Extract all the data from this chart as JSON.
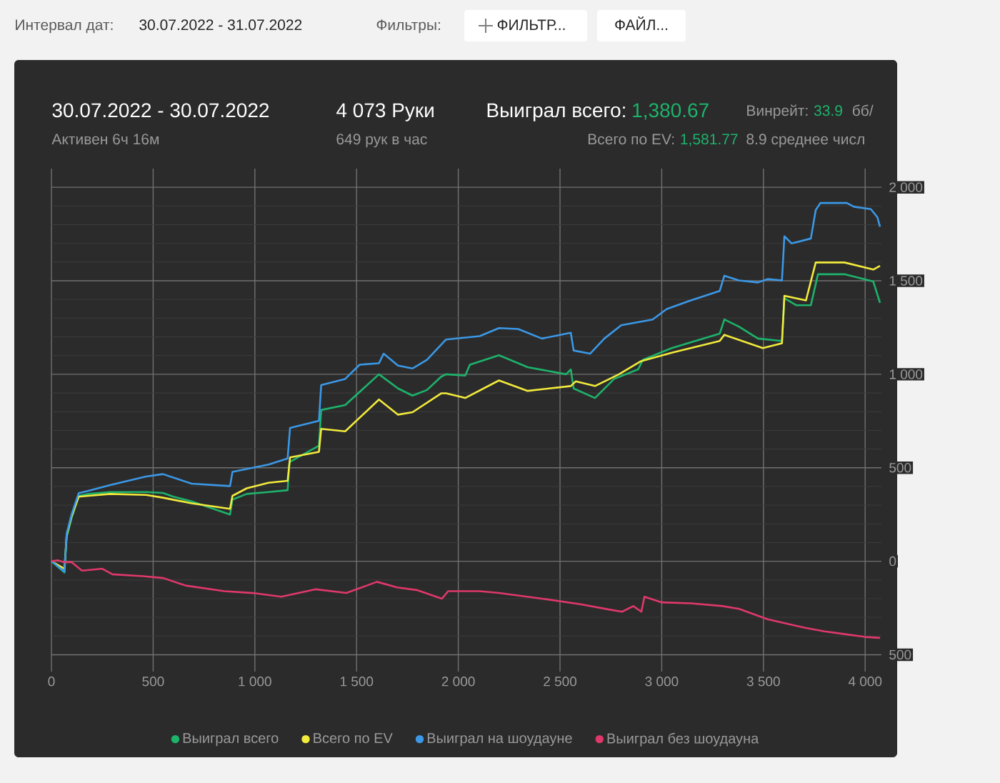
{
  "chart_data": {
    "type": "line",
    "title": "30.07.2022 - 30.07.2022",
    "subtitle": "Активен 6ч 16м",
    "annotations": [
      "Интервал дат:",
      "30.07.2022 - 31.07.2022",
      "Фильтры:",
      "ФИЛЬТР...",
      "ФАЙЛ...",
      "4 073 Руки",
      "649 рук в час",
      "Выиграл всего:",
      "1,380.67",
      "Всего по EV:",
      "1,581.77",
      "Винрейт:",
      "33.9",
      "бб/",
      "8.9 среднее числ"
    ],
    "xlim": [
      0,
      4080
    ],
    "ylim": [
      -590,
      2100
    ],
    "xticks": [
      0,
      500,
      {
        "value": 1000,
        "label": "1 000"
      },
      {
        "value": 1500,
        "label": "1 500"
      },
      {
        "value": 2000,
        "label": "2 000"
      },
      {
        "value": 2500,
        "label": "2 500"
      },
      {
        "value": 3000,
        "label": "3 000"
      },
      {
        "value": 3500,
        "label": "3 500"
      },
      {
        "value": 4000,
        "label": "4 000"
      }
    ],
    "yticks": [
      {
        "value": -500,
        "label": "500"
      },
      0,
      500,
      {
        "value": 1000,
        "label": "1 000"
      },
      {
        "value": 1500,
        "label": "1 500"
      },
      {
        "value": 2000,
        "label": "2 000"
      }
    ],
    "grid": true,
    "legend": "bottom",
    "line_style": "solid",
    "series": [
      {
        "name": "Выиграл всего",
        "color": "#1db36b",
        "x": [
          0,
          64,
          75,
          99,
          134,
          182,
          288,
          465,
          548,
          600,
          689,
          878,
          890,
          960,
          1067,
          1161,
          1170,
          1315,
          1326,
          1444,
          1610,
          1704,
          1775,
          1846,
          1916,
          1940,
          2034,
          2057,
          2200,
          2341,
          2530,
          2553,
          2567,
          2672,
          2766,
          2884,
          2907,
          3049,
          3285,
          3308,
          3379,
          3473,
          3591,
          3603,
          3662,
          3733,
          3768,
          3898,
          4040,
          4073
        ],
        "values": [
          0,
          -60,
          130,
          230,
          350,
          360,
          370,
          370,
          365,
          345,
          320,
          250,
          330,
          360,
          370,
          380,
          530,
          618,
          809,
          835,
          1000,
          924,
          886,
          916,
          987,
          1000,
          993,
          1051,
          1102,
          1038,
          1000,
          1026,
          924,
          873,
          975,
          1026,
          1077,
          1140,
          1217,
          1293,
          1255,
          1191,
          1178,
          1407,
          1369,
          1369,
          1535,
          1535,
          1496,
          1382
        ]
      },
      {
        "name": "Всего по EV",
        "color": "#f2ea3c",
        "x": [
          0,
          64,
          75,
          99,
          134,
          182,
          288,
          465,
          548,
          689,
          878,
          890,
          960,
          1067,
          1161,
          1173,
          1315,
          1326,
          1444,
          1610,
          1704,
          1775,
          1916,
          1940,
          2034,
          2200,
          2341,
          2553,
          2577,
          2672,
          2790,
          2896,
          3049,
          3285,
          3308,
          3497,
          3591,
          3603,
          3709,
          3757,
          3898,
          4040,
          4073
        ],
        "values": [
          0,
          -40,
          140,
          240,
          345,
          350,
          360,
          355,
          340,
          310,
          280,
          350,
          390,
          420,
          430,
          555,
          585,
          708,
          695,
          865,
          784,
          797,
          898,
          898,
          873,
          967,
          911,
          937,
          962,
          937,
          1000,
          1069,
          1115,
          1178,
          1211,
          1140,
          1166,
          1420,
          1395,
          1598,
          1598,
          1560,
          1580
        ]
      },
      {
        "name": "Выиграл на шоудауне",
        "color": "#3b98e6",
        "x": [
          0,
          64,
          75,
          99,
          134,
          182,
          288,
          465,
          548,
          689,
          878,
          890,
          1067,
          1161,
          1173,
          1315,
          1326,
          1444,
          1515,
          1610,
          1633,
          1704,
          1775,
          1846,
          1940,
          2105,
          2200,
          2294,
          2411,
          2553,
          2567,
          2648,
          2718,
          2801,
          2955,
          3025,
          3143,
          3285,
          3308,
          3379,
          3473,
          3520,
          3591,
          3603,
          3638,
          3733,
          3757,
          3780,
          3910,
          3945,
          4028,
          4060,
          4073
        ],
        "values": [
          0,
          -56,
          148,
          250,
          364,
          377,
          407,
          453,
          466,
          415,
          402,
          478,
          517,
          550,
          713,
          751,
          942,
          975,
          1051,
          1059,
          1110,
          1046,
          1031,
          1077,
          1186,
          1204,
          1247,
          1242,
          1191,
          1222,
          1127,
          1110,
          1191,
          1262,
          1293,
          1349,
          1395,
          1446,
          1527,
          1502,
          1491,
          1509,
          1502,
          1738,
          1700,
          1726,
          1878,
          1916,
          1916,
          1896,
          1883,
          1840,
          1789
        ]
      },
      {
        "name": "Выиграл без шоудауна",
        "color": "#e0386b",
        "x": [
          0,
          30,
          64,
          100,
          150,
          250,
          300,
          450,
          550,
          660,
          850,
          990,
          1130,
          1300,
          1450,
          1550,
          1600,
          1700,
          1800,
          1920,
          1950,
          2105,
          2200,
          2411,
          2600,
          2750,
          2805,
          2860,
          2900,
          2915,
          3000,
          3143,
          3300,
          3380,
          3520,
          3600,
          3700,
          3800,
          3900,
          4000,
          4073
        ],
        "values": [
          0,
          5,
          -5,
          -5,
          -50,
          -40,
          -70,
          -80,
          -90,
          -130,
          -160,
          -170,
          -190,
          -150,
          -170,
          -130,
          -110,
          -140,
          -155,
          -200,
          -160,
          -160,
          -170,
          -200,
          -230,
          -260,
          -270,
          -240,
          -270,
          -190,
          -220,
          -225,
          -240,
          -255,
          -310,
          -330,
          -355,
          -375,
          -390,
          -405,
          -410
        ]
      }
    ]
  }
}
